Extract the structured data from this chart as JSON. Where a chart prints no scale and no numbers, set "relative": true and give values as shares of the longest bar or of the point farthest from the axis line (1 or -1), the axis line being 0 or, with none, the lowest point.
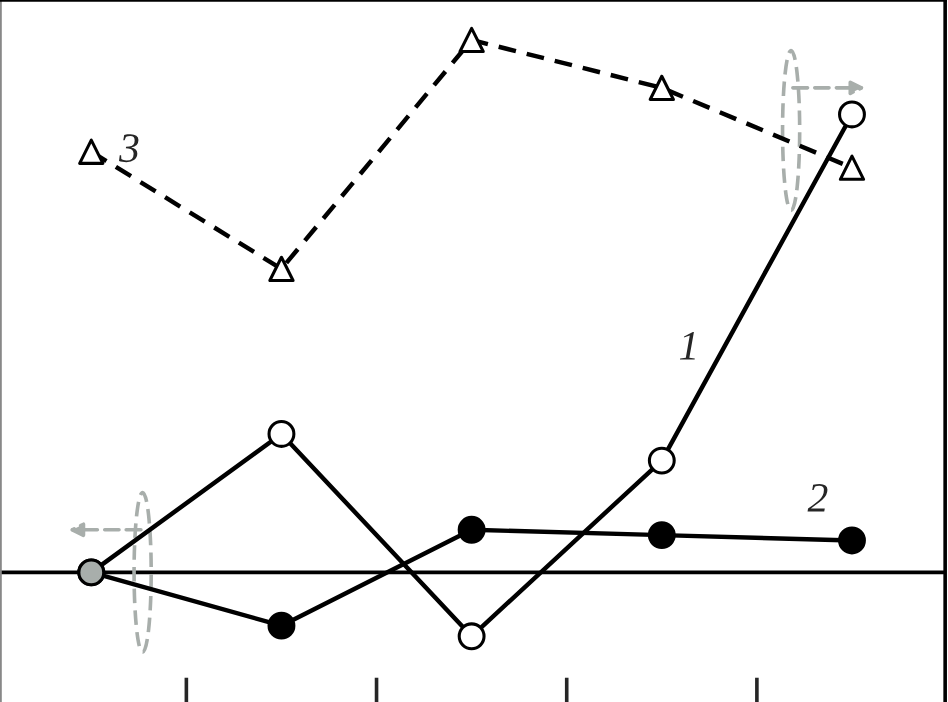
{
  "chart_data": {
    "type": "line",
    "relative": true,
    "categories": [
      null,
      null,
      null,
      null,
      null
    ],
    "grid": false,
    "legend": false,
    "series": [
      {
        "name": "1",
        "color": "#000000",
        "marker": "circle",
        "line_style": "solid",
        "colors": [
          "#a8aeab",
          "#ffffff",
          "#ffffff",
          "#ffffff",
          "#ffffff"
        ],
        "values": [
          0,
          0.26,
          -0.12,
          0.21,
          0.86
        ]
      },
      {
        "name": "2",
        "color": "#000000",
        "marker": "circle",
        "line_style": "solid",
        "colors": [
          "#a8aeab",
          "#000000",
          "#000000",
          "#000000",
          "#000000"
        ],
        "values": [
          0,
          -0.1,
          0.08,
          0.07,
          0.06
        ]
      },
      {
        "name": "3",
        "color": "#000000",
        "marker": "triangle",
        "line_style": "dashed",
        "colors": [
          "#ffffff",
          "#ffffff",
          "#ffffff",
          "#ffffff",
          "#ffffff"
        ],
        "values": [
          0.79,
          0.57,
          1.0,
          0.91,
          0.76
        ]
      }
    ]
  }
}
